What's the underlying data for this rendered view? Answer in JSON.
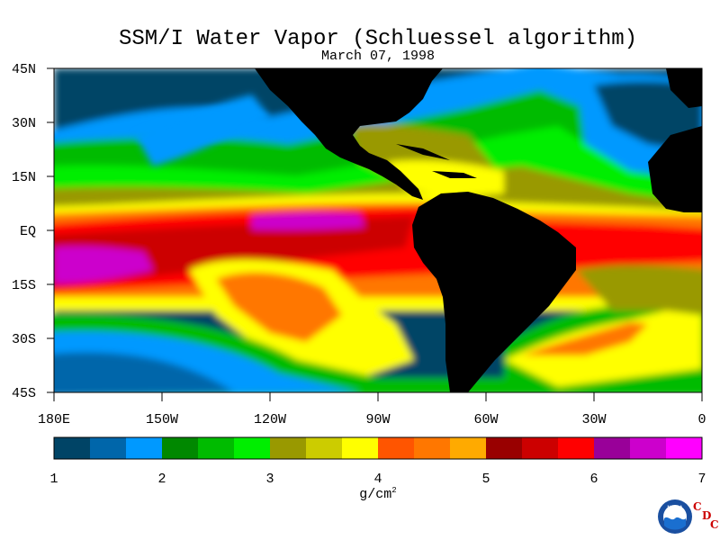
{
  "header": {
    "title": "SSM/I Water Vapor (Schluessel algorithm)",
    "date": "March 07, 1998"
  },
  "map": {
    "lat_labels": [
      "45N",
      "30N",
      "15N",
      "EQ",
      "15S",
      "30S",
      "45S"
    ],
    "lat_values": [
      45,
      30,
      15,
      0,
      -15,
      -30,
      -45
    ],
    "lon_labels": [
      "180E",
      "150W",
      "120W",
      "90W",
      "60W",
      "30W",
      "0"
    ],
    "lon_values": [
      -180,
      -150,
      -120,
      -90,
      -60,
      -30,
      0
    ],
    "lat_range": [
      -45,
      45
    ],
    "lon_range": [
      -180,
      0
    ],
    "land_color": "#000000"
  },
  "colorbar": {
    "ticks": [
      "1",
      "2",
      "3",
      "4",
      "5",
      "6",
      "7"
    ],
    "tick_values": [
      1,
      2,
      3,
      4,
      5,
      6,
      7
    ],
    "range": [
      1,
      7
    ],
    "colors": [
      "#004466",
      "#0066aa",
      "#0099ff",
      "#008800",
      "#00bb00",
      "#00ee00",
      "#999900",
      "#cccc00",
      "#ffff00",
      "#ff5500",
      "#ff7700",
      "#ffaa00",
      "#990000",
      "#cc0000",
      "#ff0000",
      "#990099",
      "#cc00cc",
      "#ff00ff"
    ],
    "unit_label": "g/cm",
    "unit_exp": "2"
  },
  "logo": {
    "noaa_text": "NOAA",
    "cdc_letters": [
      "C",
      "D",
      "C"
    ]
  }
}
